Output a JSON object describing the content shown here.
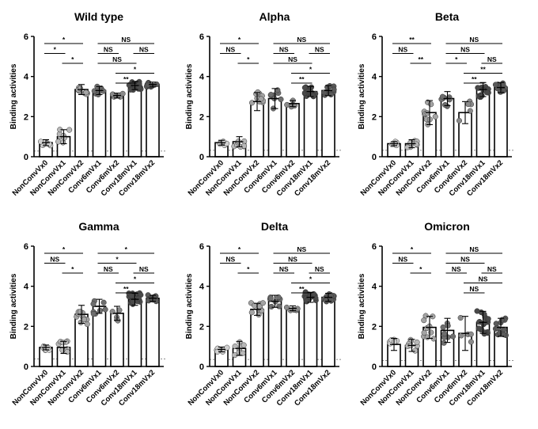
{
  "figure": {
    "ylabel": "Binding activities",
    "colors": {
      "vaccine0": "#d0d0d0",
      "vaccine1": "#b8b8b8",
      "vaccine2": "#a4a4a4",
      "conv_vaccine1": "#6e6e6e",
      "conv_vaccine2": "#8a8a8a",
      "conv18_vaccine1": "#4a4a4a",
      "conv18_vaccine2": "#5a5a5a",
      "axis": "#000000",
      "cutoff": "#666666"
    }
  },
  "chart_data": [
    {
      "type": "bar",
      "title": "Wild type",
      "ylabel": "Binding activities",
      "ylim": [
        0,
        6
      ],
      "yticks": [
        "0",
        "2",
        "4",
        "6"
      ],
      "categories": [
        "NonConvVx0",
        "NonConvVx1",
        "NonConvVx2",
        "Conv6mVx1",
        "Conv6mVx2",
        "Conv18mVx1",
        "Conv18mVx2"
      ],
      "values": [
        0.7,
        1.0,
        3.35,
        3.3,
        3.05,
        3.55,
        3.6
      ],
      "errors": [
        0.15,
        0.35,
        0.25,
        0.2,
        0.12,
        0.2,
        0.12
      ],
      "n_points": [
        7,
        8,
        10,
        8,
        5,
        18,
        12
      ],
      "cutoff": 0.28,
      "comparisons": [
        {
          "from": 0,
          "to": 2,
          "label": "*"
        },
        {
          "from": 0,
          "to": 1,
          "label": "*"
        },
        {
          "from": 1,
          "to": 2,
          "label": "*"
        },
        {
          "from": 3,
          "to": 6,
          "label": "NS"
        },
        {
          "from": 3,
          "to": 4,
          "label": "NS"
        },
        {
          "from": 3,
          "to": 5,
          "label": "NS"
        },
        {
          "from": 4,
          "to": 6,
          "label": "*"
        },
        {
          "from": 4,
          "to": 5,
          "label": "**"
        },
        {
          "from": 5,
          "to": 6,
          "label": "NS"
        }
      ]
    },
    {
      "type": "bar",
      "title": "Alpha",
      "ylabel": "Binding activities",
      "ylim": [
        0,
        6
      ],
      "yticks": [
        "0",
        "2",
        "4",
        "6"
      ],
      "categories": [
        "NonConvVx0",
        "NonConvVx1",
        "NonConvVx2",
        "Conv6mVx1",
        "Conv6mVx2",
        "Conv18mVx1",
        "Conv18mVx2"
      ],
      "values": [
        0.7,
        0.75,
        2.75,
        2.9,
        2.65,
        3.25,
        3.3
      ],
      "errors": [
        0.12,
        0.25,
        0.45,
        0.5,
        0.15,
        0.25,
        0.25
      ],
      "n_points": [
        6,
        8,
        10,
        8,
        5,
        18,
        12
      ],
      "cutoff": 0.32,
      "comparisons": [
        {
          "from": 0,
          "to": 2,
          "label": "*"
        },
        {
          "from": 0,
          "to": 1,
          "label": "NS"
        },
        {
          "from": 1,
          "to": 2,
          "label": "*"
        },
        {
          "from": 3,
          "to": 6,
          "label": "NS"
        },
        {
          "from": 3,
          "to": 4,
          "label": "NS"
        },
        {
          "from": 3,
          "to": 5,
          "label": "NS"
        },
        {
          "from": 4,
          "to": 6,
          "label": "*"
        },
        {
          "from": 4,
          "to": 5,
          "label": "**"
        },
        {
          "from": 5,
          "to": 6,
          "label": "NS"
        }
      ]
    },
    {
      "type": "bar",
      "title": "Beta",
      "ylabel": "Binding activities",
      "ylim": [
        0,
        6
      ],
      "yticks": [
        "0",
        "2",
        "4",
        "6"
      ],
      "categories": [
        "NonConvVx0",
        "NonConvVx1",
        "NonConvVx2",
        "Conv6mVx1",
        "Conv6mVx2",
        "Conv18mVx1",
        "Conv18mVx2"
      ],
      "values": [
        0.65,
        0.65,
        2.2,
        2.9,
        2.2,
        3.35,
        3.45
      ],
      "errors": [
        0.1,
        0.2,
        0.6,
        0.35,
        0.55,
        0.35,
        0.25
      ],
      "n_points": [
        6,
        8,
        10,
        8,
        5,
        18,
        12
      ],
      "cutoff": 0.32,
      "comparisons": [
        {
          "from": 0,
          "to": 2,
          "label": "**"
        },
        {
          "from": 0,
          "to": 1,
          "label": "NS"
        },
        {
          "from": 1,
          "to": 2,
          "label": "**"
        },
        {
          "from": 3,
          "to": 6,
          "label": "NS"
        },
        {
          "from": 3,
          "to": 5,
          "label": "NS"
        },
        {
          "from": 3,
          "to": 4,
          "label": "*"
        },
        {
          "from": 4,
          "to": 6,
          "label": "**"
        },
        {
          "from": 4,
          "to": 5,
          "label": "**"
        },
        {
          "from": 5,
          "to": 6,
          "label": "NS"
        }
      ]
    },
    {
      "type": "bar",
      "title": "Gamma",
      "ylabel": "Binding activities",
      "ylim": [
        0,
        6
      ],
      "yticks": [
        "0",
        "2",
        "4",
        "6"
      ],
      "categories": [
        "NonConvVx0",
        "NonConvVx1",
        "NonConvVx2",
        "Conv6mVx1",
        "Conv6mVx2",
        "Conv18mVx1",
        "Conv18mVx2"
      ],
      "values": [
        0.95,
        0.95,
        2.6,
        3.0,
        2.65,
        3.35,
        3.4
      ],
      "errors": [
        0.12,
        0.3,
        0.45,
        0.35,
        0.35,
        0.3,
        0.15
      ],
      "n_points": [
        7,
        8,
        10,
        8,
        5,
        18,
        12
      ],
      "cutoff": 0.38,
      "comparisons": [
        {
          "from": 0,
          "to": 2,
          "label": "*"
        },
        {
          "from": 0,
          "to": 1,
          "label": "NS"
        },
        {
          "from": 1,
          "to": 2,
          "label": "*"
        },
        {
          "from": 3,
          "to": 6,
          "label": "*"
        },
        {
          "from": 3,
          "to": 5,
          "label": "*"
        },
        {
          "from": 3,
          "to": 4,
          "label": "NS"
        },
        {
          "from": 4,
          "to": 6,
          "label": "*"
        },
        {
          "from": 4,
          "to": 5,
          "label": "**"
        },
        {
          "from": 5,
          "to": 6,
          "label": "NS"
        }
      ]
    },
    {
      "type": "bar",
      "title": "Delta",
      "ylabel": "Binding activities",
      "ylim": [
        0,
        6
      ],
      "yticks": [
        "0",
        "2",
        "4",
        "6"
      ],
      "categories": [
        "NonConvVx0",
        "NonConvVx1",
        "NonConvVx2",
        "Conv6mVx1",
        "Conv6mVx2",
        "Conv18mVx1",
        "Conv18mVx2"
      ],
      "values": [
        0.85,
        0.9,
        2.85,
        3.25,
        2.9,
        3.45,
        3.45
      ],
      "errors": [
        0.12,
        0.35,
        0.3,
        0.3,
        0.12,
        0.25,
        0.2
      ],
      "n_points": [
        7,
        8,
        10,
        8,
        5,
        18,
        12
      ],
      "cutoff": 0.35,
      "comparisons": [
        {
          "from": 0,
          "to": 2,
          "label": "*"
        },
        {
          "from": 0,
          "to": 1,
          "label": "NS"
        },
        {
          "from": 1,
          "to": 2,
          "label": "*"
        },
        {
          "from": 3,
          "to": 6,
          "label": "NS"
        },
        {
          "from": 3,
          "to": 5,
          "label": "NS"
        },
        {
          "from": 3,
          "to": 4,
          "label": "NS"
        },
        {
          "from": 4,
          "to": 6,
          "label": "*"
        },
        {
          "from": 4,
          "to": 5,
          "label": "**"
        },
        {
          "from": 5,
          "to": 6,
          "label": "NS"
        }
      ]
    },
    {
      "type": "bar",
      "title": "Omicron",
      "ylabel": "Binding activities",
      "ylim": [
        0,
        6
      ],
      "yticks": [
        "0",
        "2",
        "4",
        "6"
      ],
      "categories": [
        "NonConvVx0",
        "NonConvVx1",
        "NonConvVx2",
        "Conv6mVx1",
        "Conv6mVx2",
        "Conv18mVx1",
        "Conv18mVx2"
      ],
      "values": [
        1.1,
        1.05,
        1.95,
        1.8,
        1.65,
        2.2,
        1.95
      ],
      "errors": [
        0.3,
        0.3,
        0.55,
        0.6,
        0.85,
        0.55,
        0.45
      ],
      "n_points": [
        7,
        8,
        10,
        8,
        5,
        18,
        12
      ],
      "cutoff": 0.3,
      "comparisons": [
        {
          "from": 0,
          "to": 2,
          "label": "*"
        },
        {
          "from": 0,
          "to": 1,
          "label": "NS"
        },
        {
          "from": 1,
          "to": 2,
          "label": "*"
        },
        {
          "from": 3,
          "to": 6,
          "label": "NS"
        },
        {
          "from": 3,
          "to": 5,
          "label": "NS"
        },
        {
          "from": 3,
          "to": 4,
          "label": "NS"
        },
        {
          "from": 4,
          "to": 6,
          "label": "NS"
        },
        {
          "from": 4,
          "to": 5,
          "label": "NS"
        },
        {
          "from": 5,
          "to": 6,
          "label": "NS"
        }
      ]
    }
  ]
}
